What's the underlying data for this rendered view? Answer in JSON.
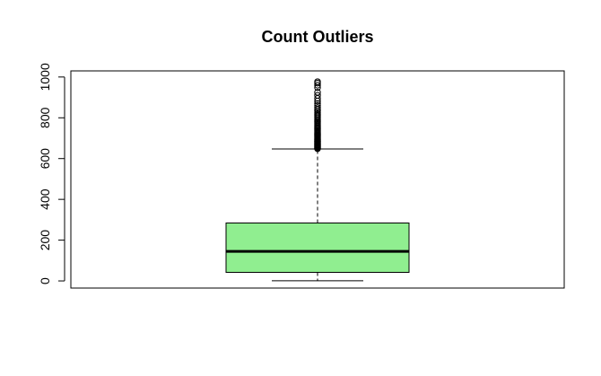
{
  "chart_data": {
    "type": "boxplot",
    "title": "Count Outliers",
    "xlabel": "",
    "ylabel": "",
    "ylim": [
      -35,
      1030
    ],
    "y_ticks": [
      0,
      200,
      400,
      600,
      800,
      1000
    ],
    "grid": false,
    "box": {
      "min": 1,
      "q1": 42,
      "median": 145,
      "q3": 284,
      "whisker_low": 1,
      "whisker_high": 647,
      "fill_color": "#90EE90"
    },
    "outliers": [
      648,
      651,
      654,
      657,
      660,
      663,
      666,
      669,
      672,
      675,
      678,
      681,
      684,
      687,
      690,
      694,
      698,
      702,
      706,
      710,
      714,
      718,
      722,
      726,
      730,
      735,
      740,
      745,
      750,
      755,
      760,
      766,
      772,
      778,
      784,
      790,
      797,
      804,
      811,
      818,
      825,
      833,
      841,
      850,
      860,
      870,
      882,
      895,
      910,
      925,
      948,
      960,
      970,
      977
    ]
  }
}
